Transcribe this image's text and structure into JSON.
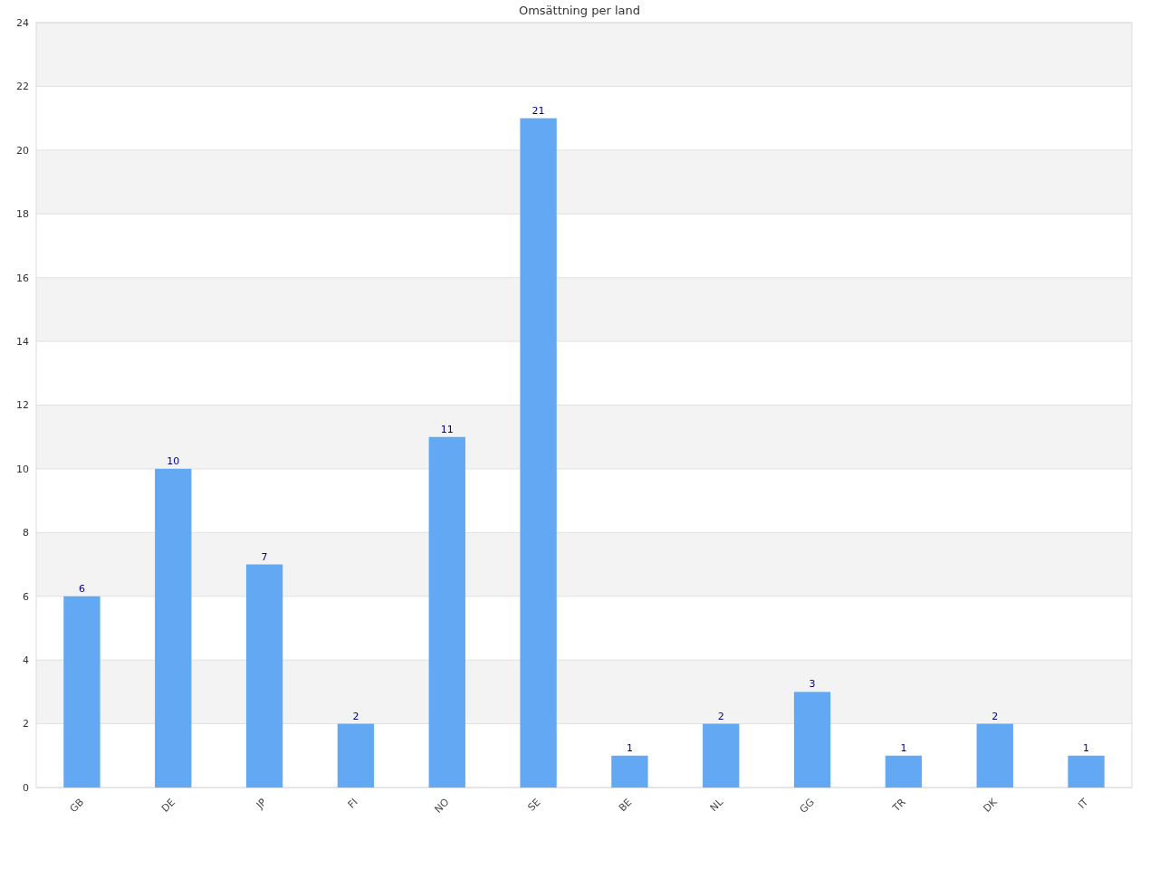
{
  "chart_data": {
    "type": "bar",
    "title": "Omsättning per land",
    "categories": [
      "GB",
      "DE",
      "JP",
      "FI",
      "NO",
      "SE",
      "BE",
      "NL",
      "GG",
      "TR",
      "DK",
      "IT"
    ],
    "values": [
      6,
      10,
      7,
      2,
      11,
      21,
      1,
      2,
      3,
      1,
      2,
      1
    ],
    "color": "#62a8f3",
    "ylim": [
      0,
      24
    ],
    "yticks": [
      0,
      2,
      4,
      6,
      8,
      10,
      12,
      14,
      16,
      18,
      20,
      22,
      24
    ],
    "grid": "y",
    "data_labels": true
  }
}
